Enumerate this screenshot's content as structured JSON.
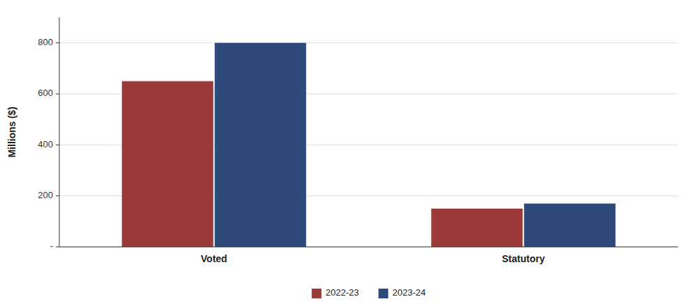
{
  "chart_data": {
    "type": "bar",
    "ylabel": "Millions ($)",
    "categories": [
      "Voted",
      "Statutory"
    ],
    "series": [
      {
        "name": "2022-23",
        "color": "#9B3A3A",
        "values": [
          650,
          150
        ]
      },
      {
        "name": "2023-24",
        "color": "#2E4A7A",
        "values": [
          800,
          170
        ]
      }
    ],
    "ylim": [
      0,
      900
    ],
    "yticks": [
      {
        "value": 0,
        "label": "-"
      },
      200,
      400,
      600,
      800
    ],
    "grid": true,
    "legend": "bottom"
  }
}
